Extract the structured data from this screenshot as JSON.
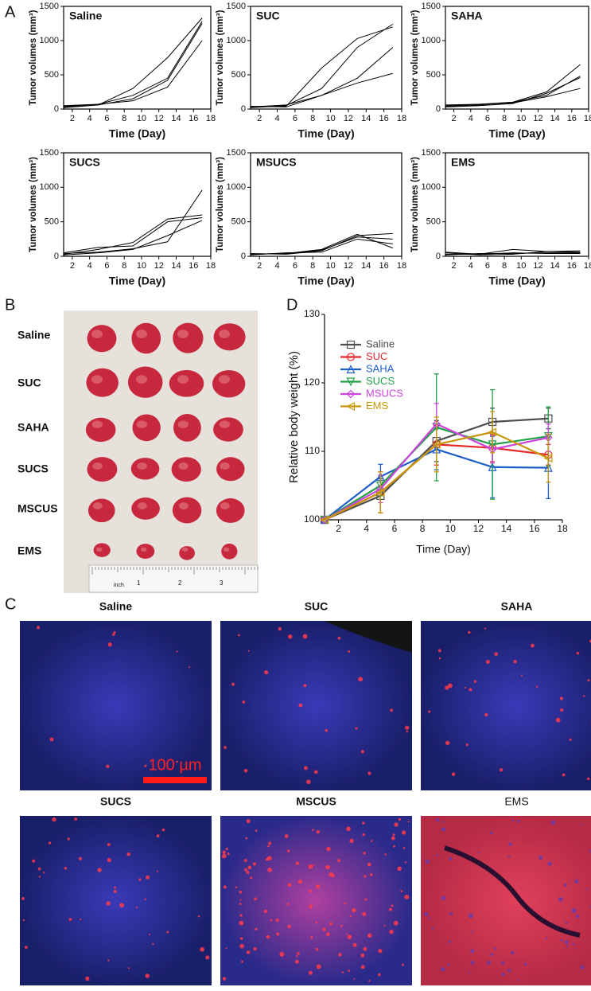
{
  "panel_labels": [
    "A",
    "B",
    "C",
    "D"
  ],
  "chart_data": [
    {
      "type": "line",
      "title": "Saline",
      "x_label": "Time (Day)",
      "y_label": "Tumor volumes (mm³)",
      "x": [
        1,
        5,
        9,
        13,
        17
      ],
      "xlim": [
        1,
        18
      ],
      "xticks": [
        2,
        4,
        6,
        8,
        10,
        12,
        14,
        16,
        18
      ],
      "ylim": [
        0,
        1500
      ],
      "yticks": [
        0,
        500,
        1000,
        1500
      ],
      "series": [
        {
          "color": "#000000",
          "values": [
            30,
            60,
            300,
            750,
            1330
          ]
        },
        {
          "color": "#000000",
          "values": [
            50,
            70,
            200,
            450,
            1280
          ]
        },
        {
          "color": "#000000",
          "values": [
            20,
            60,
            150,
            420,
            1250
          ]
        },
        {
          "color": "#000000",
          "values": [
            40,
            70,
            120,
            320,
            1000
          ]
        }
      ]
    },
    {
      "type": "line",
      "title": "SUC",
      "x_label": "Time (Day)",
      "y_label": "Tumor volumes (mm³)",
      "x": [
        1,
        5,
        9,
        13,
        17
      ],
      "xlim": [
        1,
        18
      ],
      "xticks": [
        2,
        4,
        6,
        8,
        10,
        12,
        14,
        16,
        18
      ],
      "ylim": [
        0,
        1500
      ],
      "yticks": [
        0,
        500,
        1000,
        1500
      ],
      "series": [
        {
          "color": "#000000",
          "values": [
            30,
            40,
            600,
            1030,
            1200
          ]
        },
        {
          "color": "#000000",
          "values": [
            20,
            50,
            300,
            900,
            1240
          ]
        },
        {
          "color": "#000000",
          "values": [
            30,
            60,
            200,
            450,
            900
          ]
        },
        {
          "color": "#000000",
          "values": [
            40,
            30,
            200,
            380,
            520
          ]
        }
      ]
    },
    {
      "type": "line",
      "title": "SAHA",
      "x_label": "Time (Day)",
      "y_label": "Tumor volumes (mm³)",
      "x": [
        1,
        5,
        9,
        13,
        17
      ],
      "xlim": [
        1,
        18
      ],
      "xticks": [
        2,
        4,
        6,
        8,
        10,
        12,
        14,
        16,
        18
      ],
      "ylim": [
        0,
        1500
      ],
      "yticks": [
        0,
        500,
        1000,
        1500
      ],
      "series": [
        {
          "color": "#000000",
          "values": [
            40,
            60,
            100,
            250,
            650
          ]
        },
        {
          "color": "#000000",
          "values": [
            50,
            70,
            100,
            200,
            480
          ]
        },
        {
          "color": "#000000",
          "values": [
            30,
            50,
            80,
            230,
            460
          ]
        },
        {
          "color": "#000000",
          "values": [
            60,
            70,
            90,
            180,
            300
          ]
        }
      ]
    },
    {
      "type": "line",
      "title": "SUCS",
      "x_label": "Time (Day)",
      "y_label": "Tumor volumes (mm³)",
      "x": [
        1,
        5,
        9,
        13,
        17
      ],
      "xlim": [
        1,
        18
      ],
      "xticks": [
        2,
        4,
        6,
        8,
        10,
        12,
        14,
        16,
        18
      ],
      "ylim": [
        0,
        1500
      ],
      "yticks": [
        0,
        500,
        1000,
        1500
      ],
      "series": [
        {
          "color": "#000000",
          "values": [
            30,
            100,
            200,
            540,
            600
          ]
        },
        {
          "color": "#000000",
          "values": [
            50,
            130,
            150,
            500,
            560
          ]
        },
        {
          "color": "#000000",
          "values": [
            20,
            50,
            100,
            300,
            520
          ]
        },
        {
          "color": "#000000",
          "values": [
            40,
            60,
            110,
            210,
            960
          ]
        }
      ]
    },
    {
      "type": "line",
      "title": "MSUCS",
      "x_label": "Time (Day)",
      "y_label": "Tumor volumes (mm³)",
      "x": [
        1,
        5,
        9,
        13,
        17
      ],
      "xlim": [
        1,
        18
      ],
      "xticks": [
        2,
        4,
        6,
        8,
        10,
        12,
        14,
        16,
        18
      ],
      "ylim": [
        0,
        1500
      ],
      "yticks": [
        0,
        500,
        1000,
        1500
      ],
      "series": [
        {
          "color": "#000000",
          "values": [
            30,
            40,
            100,
            320,
            120
          ]
        },
        {
          "color": "#000000",
          "values": [
            40,
            30,
            80,
            300,
            330
          ]
        },
        {
          "color": "#000000",
          "values": [
            20,
            50,
            60,
            250,
            180
          ]
        },
        {
          "color": "#000000",
          "values": [
            30,
            40,
            90,
            280,
            250
          ]
        }
      ]
    },
    {
      "type": "line",
      "title": "EMS",
      "x_label": "Time (Day)",
      "y_label": "Tumor volumes (mm³)",
      "x": [
        1,
        5,
        9,
        13,
        17
      ],
      "xlim": [
        1,
        18
      ],
      "xticks": [
        2,
        4,
        6,
        8,
        10,
        12,
        14,
        16,
        18
      ],
      "ylim": [
        0,
        1500
      ],
      "yticks": [
        0,
        500,
        1000,
        1500
      ],
      "series": [
        {
          "color": "#000000",
          "values": [
            50,
            20,
            30,
            70,
            60
          ]
        },
        {
          "color": "#000000",
          "values": [
            30,
            30,
            100,
            70,
            80
          ]
        },
        {
          "color": "#000000",
          "values": [
            20,
            40,
            40,
            50,
            50
          ]
        },
        {
          "color": "#000000",
          "values": [
            60,
            30,
            50,
            40,
            40
          ]
        }
      ]
    },
    {
      "type": "errorline",
      "x_label": "Time (Day)",
      "y_label": "Relative body weight (%)",
      "x": [
        1,
        5,
        9,
        13,
        17
      ],
      "xlim": [
        1,
        18
      ],
      "xticks": [
        2,
        4,
        6,
        8,
        10,
        12,
        14,
        16,
        18
      ],
      "ylim": [
        100,
        130
      ],
      "yticks": [
        100,
        110,
        120,
        130
      ],
      "legend": "upper left",
      "series": [
        {
          "name": "Saline",
          "color": "#4d4d4d",
          "marker": "square",
          "values": [
            100,
            103.5,
            111.5,
            114.3,
            114.8
          ],
          "errors": [
            0,
            2.5,
            3,
            2,
            1.5
          ]
        },
        {
          "name": "SUC",
          "color": "#e8262b",
          "marker": "circle",
          "values": [
            100,
            104,
            111,
            110.5,
            109.5
          ],
          "errors": [
            0,
            3,
            3,
            2,
            1.5
          ]
        },
        {
          "name": "SAHA",
          "color": "#1f5fc8",
          "marker": "triangle-up",
          "values": [
            100,
            106.3,
            110.3,
            107.7,
            107.6
          ],
          "errors": [
            0,
            1.8,
            3,
            4.5,
            4.5
          ]
        },
        {
          "name": "SUCS",
          "color": "#22a048",
          "marker": "triangle-down",
          "values": [
            100,
            105,
            113.5,
            111,
            112.2
          ],
          "errors": [
            0,
            1.5,
            7.8,
            8,
            4.3
          ]
        },
        {
          "name": "MSUCS",
          "color": "#cc44dd",
          "marker": "diamond",
          "values": [
            100,
            104.5,
            114,
            110.3,
            112
          ],
          "errors": [
            0,
            2,
            3,
            2,
            2
          ]
        },
        {
          "name": "EMS",
          "color": "#c8960a",
          "marker": "triangle-left",
          "values": [
            100,
            104,
            111,
            112.8,
            109
          ],
          "errors": [
            0,
            3,
            4,
            3,
            3.5
          ]
        }
      ]
    }
  ],
  "photo": {
    "groups": [
      "Saline",
      "SUC",
      "SAHA",
      "SUCS",
      "MSCUS",
      "EMS"
    ],
    "ruler": [
      "inch",
      "1",
      "2",
      "3"
    ]
  },
  "micrographs": {
    "labels": [
      "Saline",
      "SUC",
      "SAHA",
      "SUCS",
      "MSCUS",
      "EMS"
    ],
    "scale_bar": "100 µm"
  }
}
